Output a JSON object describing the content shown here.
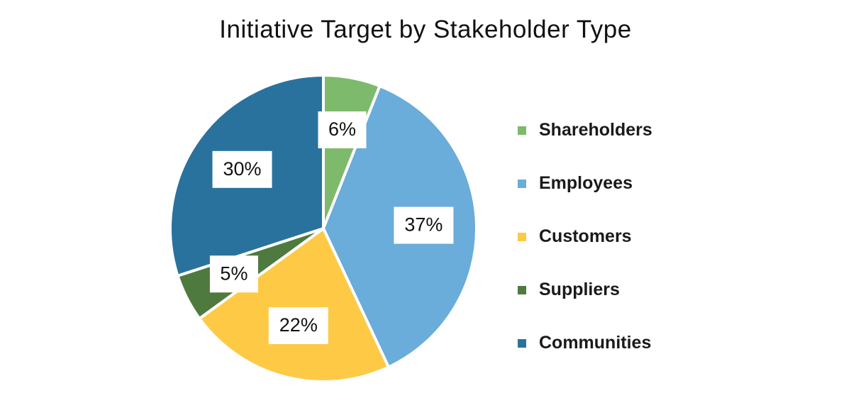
{
  "chart_data": {
    "type": "pie",
    "title": "Initiative Target by Stakeholder Type",
    "categories": [
      "Shareholders",
      "Employees",
      "Customers",
      "Suppliers",
      "Communities"
    ],
    "values": [
      6,
      37,
      22,
      5,
      30
    ],
    "data_labels": [
      "6%",
      "37%",
      "22%",
      "5%",
      "30%"
    ],
    "colors": [
      "#7dba6b",
      "#6aacda",
      "#fec945",
      "#4f7a3f",
      "#2a729e"
    ],
    "start_angle": "12 o'clock",
    "direction": "clockwise",
    "legend_position": "right"
  }
}
